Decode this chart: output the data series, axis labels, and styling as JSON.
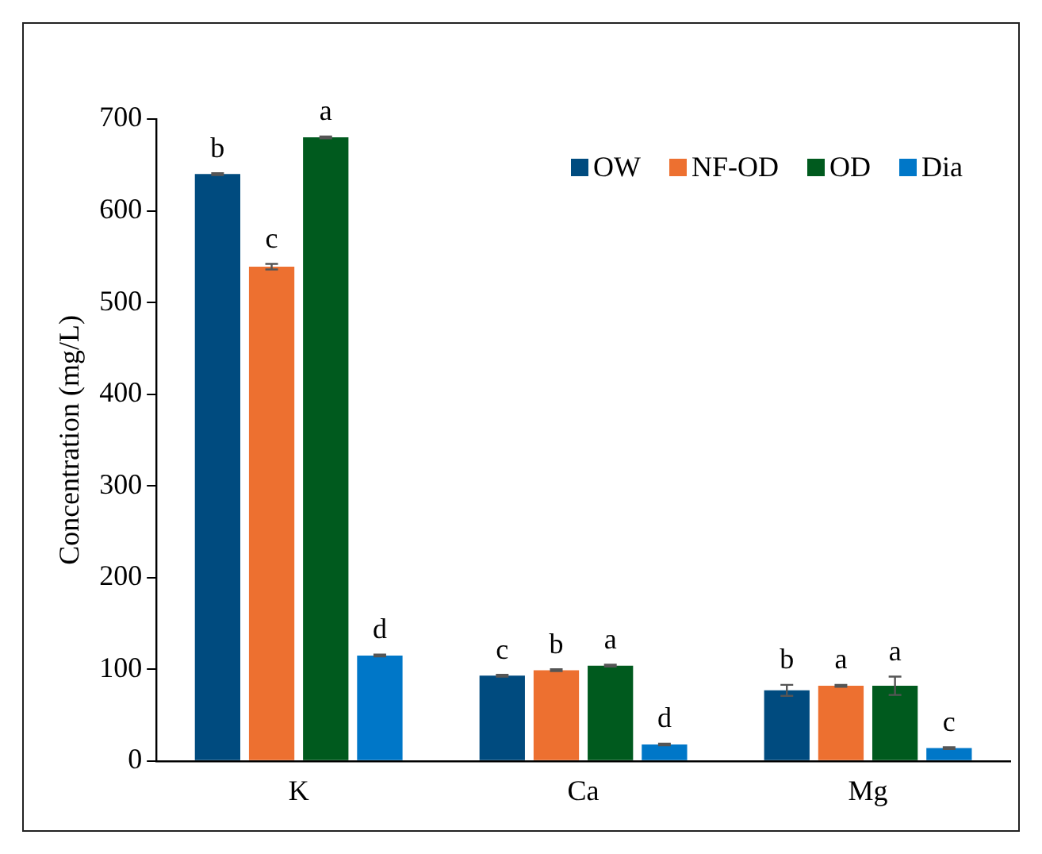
{
  "chart_data": {
    "type": "bar",
    "ylabel": "Concentration (mg/L)",
    "categories": [
      "K",
      "Ca",
      "Mg"
    ],
    "series": [
      {
        "name": "OW",
        "color": "#004b7f",
        "values": [
          640,
          93,
          77
        ],
        "errors": [
          1,
          1,
          6
        ],
        "value_labels": [
          "b",
          "c",
          "b"
        ]
      },
      {
        "name": "NF-OD",
        "color": "#ed7030",
        "values": [
          539,
          99,
          82
        ],
        "errors": [
          3,
          1,
          1
        ],
        "value_labels": [
          "c",
          "b",
          "a"
        ]
      },
      {
        "name": "OD",
        "color": "#005a1e",
        "values": [
          680,
          104,
          82
        ],
        "errors": [
          1,
          1,
          10
        ],
        "value_labels": [
          "a",
          "a",
          "a"
        ]
      },
      {
        "name": "Dia",
        "color": "#0077c8",
        "values": [
          115,
          18,
          14
        ],
        "errors": [
          1,
          1,
          1
        ],
        "value_labels": [
          "d",
          "d",
          "c"
        ]
      }
    ],
    "ylim": [
      0,
      700
    ],
    "yticks": [
      0,
      100,
      200,
      300,
      400,
      500,
      600,
      700
    ],
    "grid": false,
    "legend": "top right"
  }
}
